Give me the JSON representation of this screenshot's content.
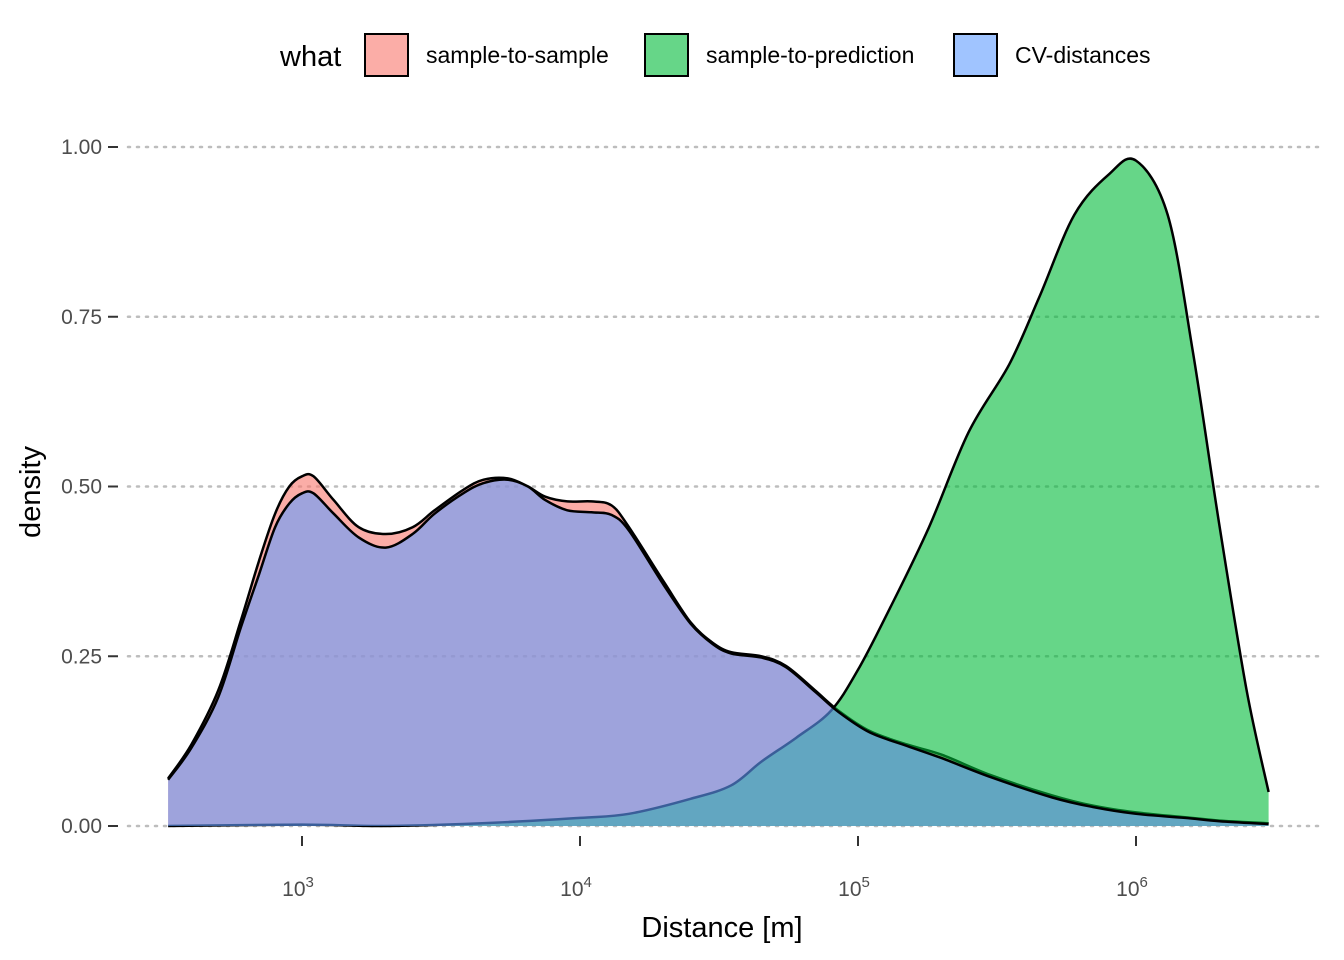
{
  "chart_data": {
    "type": "area",
    "xlabel": "Distance [m]",
    "ylabel": "density",
    "x_scale": "log10",
    "xlim": [
      330,
      3000000
    ],
    "ylim": [
      0,
      1.0
    ],
    "y_ticks": [
      "0.00",
      "0.25",
      "0.50",
      "0.75",
      "1.00"
    ],
    "y_tick_values": [
      0,
      0.25,
      0.5,
      0.75,
      1.0
    ],
    "x_ticks": [
      {
        "base": "10",
        "exp": "3",
        "value": 1000
      },
      {
        "base": "10",
        "exp": "4",
        "value": 10000
      },
      {
        "base": "10",
        "exp": "5",
        "value": 100000
      },
      {
        "base": "10",
        "exp": "6",
        "value": 1000000
      }
    ],
    "grid": "horizontal dotted",
    "legend": {
      "title": "what",
      "position": "top"
    },
    "series": [
      {
        "name": "sample-to-sample",
        "color": "#F8766D",
        "x": [
          330,
          400,
          500,
          600,
          700,
          800,
          900,
          1000,
          1100,
          1300,
          1600,
          2000,
          2500,
          3000,
          3800,
          4500,
          5500,
          6500,
          7500,
          9000,
          11000,
          13000,
          15000,
          20000,
          25000,
          30000,
          35000,
          45000,
          55000,
          70000,
          85000,
          110000,
          150000,
          200000,
          300000,
          500000,
          700000,
          1000000,
          1500000,
          2000000,
          3000000
        ],
        "y": [
          0.07,
          0.12,
          0.2,
          0.3,
          0.39,
          0.46,
          0.5,
          0.515,
          0.515,
          0.48,
          0.44,
          0.43,
          0.44,
          0.465,
          0.495,
          0.51,
          0.512,
          0.5,
          0.485,
          0.478,
          0.478,
          0.472,
          0.44,
          0.36,
          0.3,
          0.27,
          0.256,
          0.25,
          0.236,
          0.2,
          0.17,
          0.14,
          0.12,
          0.105,
          0.075,
          0.045,
          0.03,
          0.02,
          0.013,
          0.008,
          0.004
        ]
      },
      {
        "name": "sample-to-prediction",
        "color": "#00BA38",
        "x": [
          330,
          1000,
          2000,
          5000,
          10000,
          15000,
          25000,
          35000,
          45000,
          60000,
          80000,
          100000,
          130000,
          180000,
          250000,
          350000,
          450000,
          600000,
          800000,
          1000000,
          1300000,
          1600000,
          2000000,
          2500000,
          3000000
        ],
        "y": [
          0.0,
          0.002,
          0.0,
          0.005,
          0.012,
          0.018,
          0.04,
          0.06,
          0.095,
          0.13,
          0.17,
          0.23,
          0.32,
          0.44,
          0.58,
          0.68,
          0.78,
          0.9,
          0.96,
          0.98,
          0.9,
          0.7,
          0.44,
          0.2,
          0.05
        ]
      },
      {
        "name": "CV-distances",
        "color": "#619CFF",
        "x": [
          330,
          400,
          500,
          600,
          700,
          800,
          900,
          1000,
          1100,
          1300,
          1600,
          2000,
          2500,
          3000,
          3800,
          4500,
          5500,
          6500,
          7500,
          9000,
          11000,
          13000,
          15000,
          20000,
          25000,
          30000,
          35000,
          45000,
          55000,
          70000,
          85000,
          110000,
          150000,
          200000,
          300000,
          500000,
          700000,
          1000000,
          1500000,
          2000000,
          3000000
        ],
        "y": [
          0.068,
          0.115,
          0.19,
          0.29,
          0.37,
          0.44,
          0.475,
          0.49,
          0.49,
          0.46,
          0.425,
          0.41,
          0.43,
          0.46,
          0.49,
          0.505,
          0.51,
          0.5,
          0.48,
          0.465,
          0.462,
          0.458,
          0.435,
          0.355,
          0.298,
          0.268,
          0.254,
          0.248,
          0.234,
          0.198,
          0.168,
          0.138,
          0.118,
          0.1,
          0.072,
          0.042,
          0.028,
          0.018,
          0.012,
          0.007,
          0.003
        ]
      }
    ]
  }
}
